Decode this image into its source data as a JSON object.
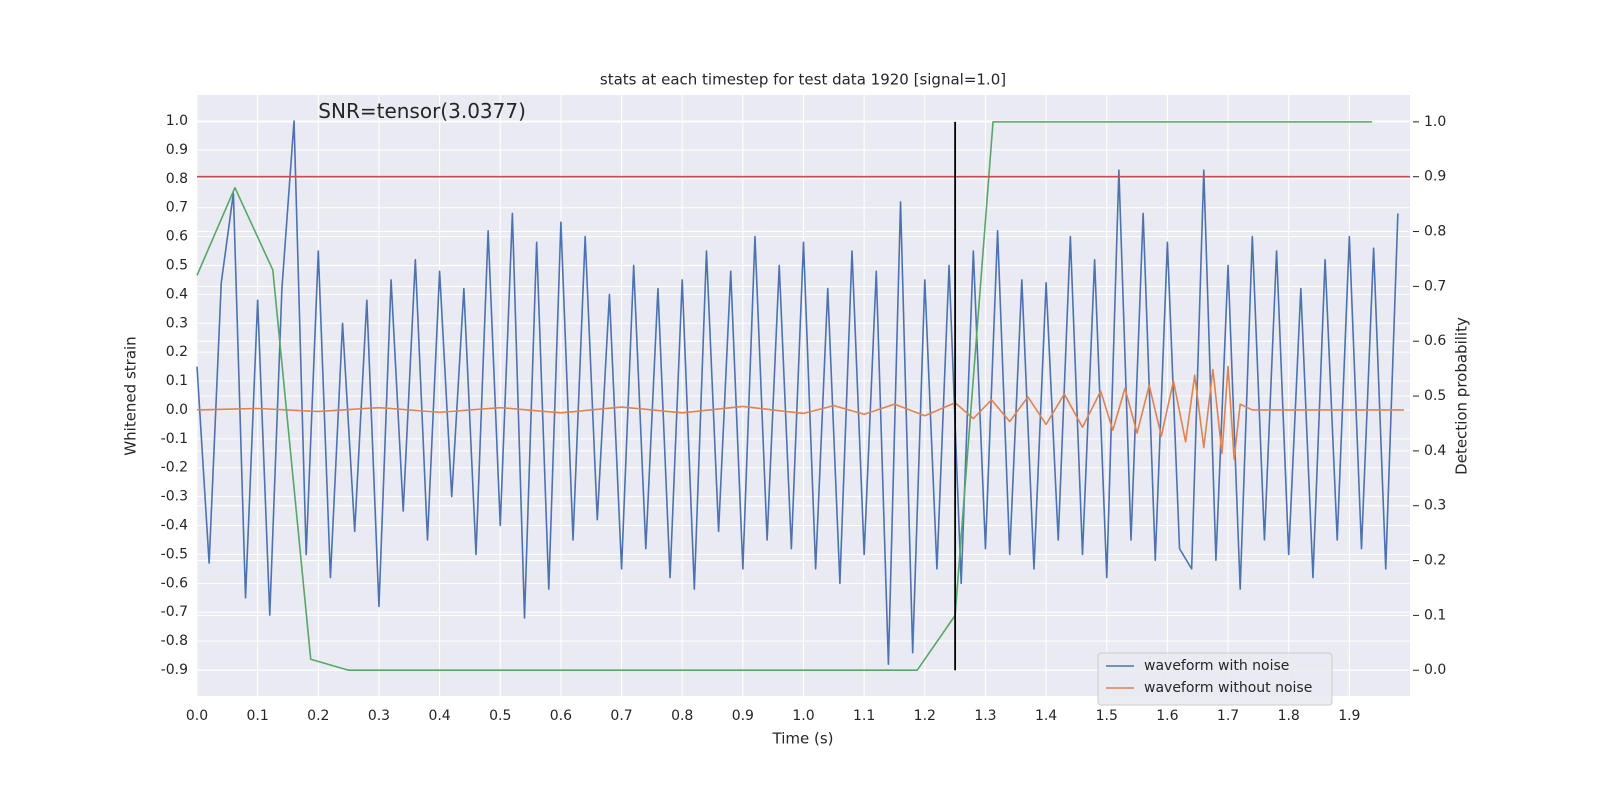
{
  "chart_data": {
    "type": "line",
    "title": "stats at each timestep for test data 1920 [signal=1.0]",
    "x_label": "Time (s)",
    "y_label": "Whitened strain",
    "y2_label": "Detection probability",
    "annotation": {
      "text": "SNR=tensor(3.0377)",
      "x": 0.2,
      "y": 1.03
    },
    "xlim": [
      0,
      2.0
    ],
    "ylim": [
      -0.99,
      1.09
    ],
    "y2lim": [
      -0.047,
      1.049
    ],
    "xticks": [
      {
        "value": 0,
        "label": "0.0"
      },
      0.1,
      0.2,
      0.3,
      0.4,
      0.5,
      0.6,
      0.7,
      0.8,
      0.9,
      {
        "value": 1,
        "label": "1.0"
      },
      1.1,
      1.2,
      1.3,
      1.4,
      1.5,
      1.6,
      1.7,
      1.8,
      1.9
    ],
    "yticks": [
      -0.9,
      -0.8,
      -0.7,
      -0.6,
      -0.5,
      -0.4,
      -0.3,
      -0.2,
      -0.1,
      {
        "value": 0,
        "label": "0.0"
      },
      0.1,
      0.2,
      0.3,
      0.4,
      0.5,
      0.6,
      0.7,
      0.8,
      0.9,
      {
        "value": 1,
        "label": "1.0"
      }
    ],
    "y2ticks": [
      {
        "value": 0,
        "label": "0.0"
      },
      0.1,
      0.2,
      0.3,
      0.4,
      0.5,
      0.6,
      0.7,
      0.8,
      0.9,
      {
        "value": 1,
        "label": "1.0"
      }
    ],
    "grid": true,
    "legend_position": "lower right",
    "series": [
      {
        "name": "waveform with noise",
        "color": "#4c72b0",
        "axis": "y",
        "x": [
          0,
          0.02,
          0.04,
          0.06,
          0.08,
          0.1,
          0.12,
          0.14,
          0.16,
          0.18,
          0.2,
          0.22,
          0.24,
          0.26,
          0.28,
          0.3,
          0.32,
          0.34,
          0.36,
          0.38,
          0.4,
          0.42,
          0.44,
          0.46,
          0.48,
          0.5,
          0.52,
          0.54,
          0.56,
          0.58,
          0.6,
          0.62,
          0.64,
          0.66,
          0.68,
          0.7,
          0.72,
          0.74,
          0.76,
          0.78,
          0.8,
          0.82,
          0.84,
          0.86,
          0.88,
          0.9,
          0.92,
          0.94,
          0.96,
          0.98,
          1.0,
          1.02,
          1.04,
          1.06,
          1.08,
          1.1,
          1.12,
          1.14,
          1.16,
          1.18,
          1.2,
          1.22,
          1.24,
          1.26,
          1.28,
          1.3,
          1.32,
          1.34,
          1.36,
          1.38,
          1.4,
          1.42,
          1.44,
          1.46,
          1.48,
          1.5,
          1.52,
          1.54,
          1.56,
          1.58,
          1.6,
          1.62,
          1.64,
          1.66,
          1.68,
          1.7,
          1.72,
          1.74,
          1.76,
          1.78,
          1.8,
          1.82,
          1.84,
          1.86,
          1.88,
          1.9,
          1.92,
          1.94,
          1.96,
          1.98
        ],
        "values": [
          0.15,
          -0.53,
          0.44,
          0.75,
          -0.65,
          0.38,
          -0.71,
          0.42,
          1.0,
          -0.5,
          0.55,
          -0.58,
          0.3,
          -0.42,
          0.38,
          -0.68,
          0.45,
          -0.35,
          0.52,
          -0.45,
          0.48,
          -0.3,
          0.42,
          -0.5,
          0.62,
          -0.4,
          0.68,
          -0.72,
          0.58,
          -0.62,
          0.65,
          -0.45,
          0.6,
          -0.38,
          0.4,
          -0.55,
          0.5,
          -0.48,
          0.42,
          -0.58,
          0.45,
          -0.62,
          0.55,
          -0.42,
          0.48,
          -0.55,
          0.6,
          -0.45,
          0.5,
          -0.48,
          0.58,
          -0.55,
          0.42,
          -0.6,
          0.55,
          -0.5,
          0.48,
          -0.88,
          0.72,
          -0.84,
          0.45,
          -0.55,
          0.5,
          -0.6,
          0.55,
          -0.48,
          0.62,
          -0.5,
          0.45,
          -0.55,
          0.44,
          -0.45,
          0.6,
          -0.5,
          0.52,
          -0.58,
          0.83,
          -0.45,
          0.68,
          -0.52,
          0.58,
          -0.48,
          -0.55,
          0.83,
          -0.52,
          0.5,
          -0.62,
          0.6,
          -0.45,
          0.55,
          -0.5,
          0.42,
          -0.58,
          0.52,
          -0.45,
          0.6,
          -0.48,
          0.56,
          -0.55,
          0.68
        ]
      },
      {
        "name": "waveform without noise",
        "color": "#dd8452",
        "axis": "y",
        "x": [
          0,
          0.1,
          0.2,
          0.3,
          0.4,
          0.5,
          0.6,
          0.7,
          0.8,
          0.9,
          1.0,
          1.05,
          1.1,
          1.15,
          1.2,
          1.25,
          1.28,
          1.31,
          1.34,
          1.37,
          1.4,
          1.43,
          1.46,
          1.49,
          1.51,
          1.53,
          1.55,
          1.57,
          1.59,
          1.61,
          1.63,
          1.645,
          1.66,
          1.675,
          1.69,
          1.7,
          1.71,
          1.72,
          1.74,
          1.99
        ],
        "values": [
          0,
          0.005,
          -0.005,
          0.008,
          -0.008,
          0.008,
          -0.01,
          0.01,
          -0.01,
          0.012,
          -0.012,
          0.015,
          -0.015,
          0.02,
          -0.02,
          0.025,
          -0.03,
          0.035,
          -0.04,
          0.045,
          -0.05,
          0.055,
          -0.06,
          0.065,
          -0.07,
          0.075,
          -0.08,
          0.085,
          -0.09,
          0.1,
          -0.11,
          0.12,
          -0.13,
          0.14,
          -0.15,
          0.15,
          -0.17,
          0.02,
          0,
          0
        ]
      },
      {
        "color": "#55a868",
        "axis": "y2",
        "x": [
          0,
          0.0625,
          0.125,
          0.1875,
          0.25,
          1.1875,
          1.25,
          1.3125,
          1.375,
          1.9375
        ],
        "values": [
          0.72,
          0.88,
          0.73,
          0.02,
          0,
          0,
          0.1,
          1.0,
          1.0,
          1.0
        ]
      }
    ],
    "hlines": [
      {
        "value": 0.9,
        "axis": "y2",
        "color": "#c44e52"
      }
    ],
    "vlines": [
      {
        "x": 1.25,
        "ymin": 0,
        "ymax": 1,
        "axis": "y2",
        "color": "#000000"
      }
    ]
  }
}
